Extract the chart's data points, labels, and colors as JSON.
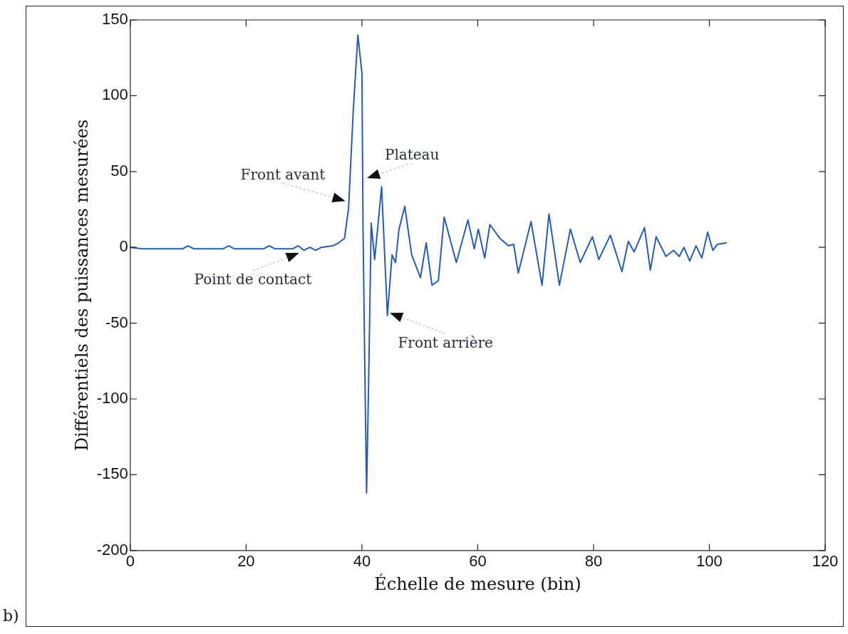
{
  "chart_data": {
    "type": "line",
    "xlabel": "Échelle de mesure (bin)",
    "ylabel": "Différentiels des puissances mesurées",
    "xlim": [
      0,
      120
    ],
    "xticks": [
      0,
      20,
      40,
      60,
      80,
      100,
      120
    ],
    "ylim": [
      -200,
      150
    ],
    "yticks": [
      -200,
      -150,
      -100,
      -50,
      0,
      50,
      100,
      150
    ],
    "grid": false,
    "legend": false,
    "marker": "none",
    "line_style": "solid",
    "series": [
      {
        "color": "#2a5caa",
        "x": [
          0,
          2,
          5,
          9,
          10,
          11,
          16,
          17,
          18,
          23,
          24,
          25,
          28,
          29,
          30,
          31,
          32,
          33,
          35,
          36,
          37,
          37.7,
          38.5,
          39.3,
          40,
          40.2,
          40.5,
          40.8,
          41.2,
          41.6,
          42.2,
          43.4,
          44.4,
          45.2,
          45.8,
          46.4,
          47.4,
          48.6,
          50.1,
          51.1,
          52.1,
          53.2,
          54.2,
          56.3,
          58.3,
          59.4,
          60.1,
          61.2,
          62.1,
          63.8,
          65.3,
          66.2,
          67.0,
          69.2,
          71.1,
          72.3,
          74.1,
          76.0,
          77.7,
          79.8,
          80.9,
          82.9,
          84.9,
          86.0,
          87.0,
          88.8,
          89.8,
          90.8,
          92.5,
          93.8,
          94.8,
          95.6,
          96.6,
          97.7,
          98.7,
          99.7,
          100.6,
          101.4,
          103
        ],
        "values": [
          0,
          -1,
          -1,
          -1,
          1,
          -1,
          -1,
          1,
          -1,
          -1,
          1,
          -1,
          -1,
          1,
          -2,
          0,
          -2,
          0,
          1,
          3,
          6,
          26,
          90,
          140,
          115,
          10,
          -80,
          -162,
          -80,
          16,
          -8,
          40,
          -45,
          -5,
          -10,
          12,
          27,
          -5,
          -20,
          3,
          -25,
          -22,
          20,
          -10,
          18,
          -1,
          12,
          -7,
          15,
          6,
          1,
          2,
          -17,
          17,
          -25,
          22,
          -25,
          12,
          -10,
          7,
          -8,
          8,
          -16,
          4,
          -3,
          13,
          -15,
          7,
          -6,
          -2,
          -6,
          0,
          -9,
          1,
          -7,
          10,
          -2,
          2,
          3
        ]
      }
    ],
    "annotations": [
      {
        "text": "Front avant",
        "x": 37.5,
        "y": 30
      },
      {
        "text": "Plateau",
        "x": 40.5,
        "y": 45
      },
      {
        "text": "Point de contact",
        "x": 29.5,
        "y": -3
      },
      {
        "text": "Front arrière",
        "x": 44.5,
        "y": -43
      },
      "b)"
    ]
  }
}
